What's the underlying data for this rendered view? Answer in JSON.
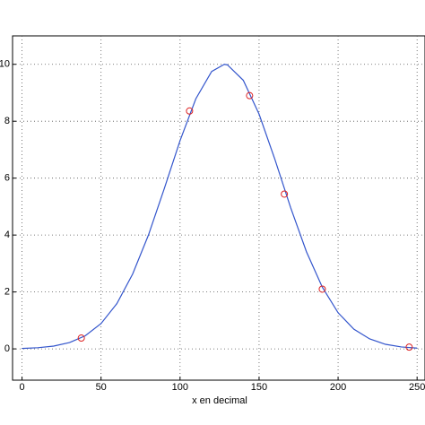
{
  "chart_data": {
    "type": "line-scatter",
    "xlabel": "x en decimal",
    "xlim": [
      -6,
      255
    ],
    "ylim": [
      -1.1,
      11
    ],
    "xticks": [
      0,
      50,
      100,
      150,
      200,
      250
    ],
    "yticks": [
      0,
      2,
      4,
      6,
      8,
      10
    ],
    "grid": true,
    "curve": {
      "color": "#3355cc",
      "x": [
        0,
        10,
        20,
        30,
        40,
        50,
        60,
        70,
        80,
        90,
        100,
        110,
        120,
        128,
        130,
        140,
        150,
        160,
        170,
        180,
        190,
        200,
        210,
        220,
        230,
        240,
        250
      ],
      "y": [
        0.015,
        0.04,
        0.097,
        0.22,
        0.46,
        0.89,
        1.59,
        2.63,
        4.0,
        5.63,
        7.32,
        8.79,
        9.75,
        10,
        9.98,
        9.44,
        8.25,
        6.66,
        4.96,
        3.41,
        2.17,
        1.27,
        0.69,
        0.35,
        0.16,
        0.068,
        0.027
      ]
    },
    "points": {
      "color": "#dd2222",
      "x": [
        37.5,
        106,
        144,
        166,
        190,
        245
      ],
      "y": [
        0.38,
        8.36,
        8.9,
        5.44,
        2.1,
        0.06
      ]
    }
  }
}
